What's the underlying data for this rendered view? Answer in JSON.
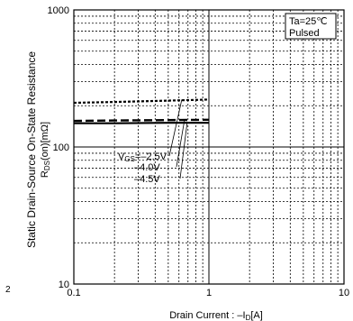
{
  "chart_data": {
    "type": "line",
    "title": "",
    "xlabel": "Drain Current : –I",
    "xlabel_sub": "D",
    "xlabel_unit": "[A]",
    "ylabel_line1": "Static Drain-Source On-State Resistance",
    "ylabel_line2_pre": "R",
    "ylabel_line2_sub": "DS",
    "ylabel_line2_post": "(on)[mΩ]",
    "x_scale": "log",
    "y_scale": "log",
    "xlim": [
      0.1,
      10
    ],
    "ylim": [
      10,
      1000
    ],
    "x_ticks": [
      {
        "value": 0.1,
        "label": "0.1"
      },
      {
        "value": 1,
        "label": "1"
      },
      {
        "value": 10,
        "label": "10"
      }
    ],
    "y_ticks": [
      {
        "value": 10,
        "label": "10"
      },
      {
        "value": 100,
        "label": "100"
      },
      {
        "value": 1000,
        "label": "1000"
      }
    ],
    "grid": true,
    "conditions": [
      "Ta=25℃",
      "Pulsed"
    ],
    "legend_prefix": "V",
    "legend_prefix_sub": "GS",
    "page_marker": "2",
    "series": [
      {
        "name": "=–2.5V",
        "style": "dotted",
        "x": [
          0.1,
          0.2,
          0.5,
          1.0
        ],
        "y": [
          210,
          213,
          218,
          222
        ]
      },
      {
        "name": "–4.0V",
        "style": "dashed",
        "x": [
          0.1,
          0.2,
          0.5,
          1.0
        ],
        "y": [
          155,
          156,
          157,
          158
        ]
      },
      {
        "name": "–4.5V",
        "style": "solid",
        "x": [
          0.1,
          0.2,
          0.5,
          1.0
        ],
        "y": [
          149,
          149,
          150,
          150
        ]
      }
    ],
    "label_pointer_targets_x": [
      0.63,
      0.66,
      0.69
    ]
  }
}
